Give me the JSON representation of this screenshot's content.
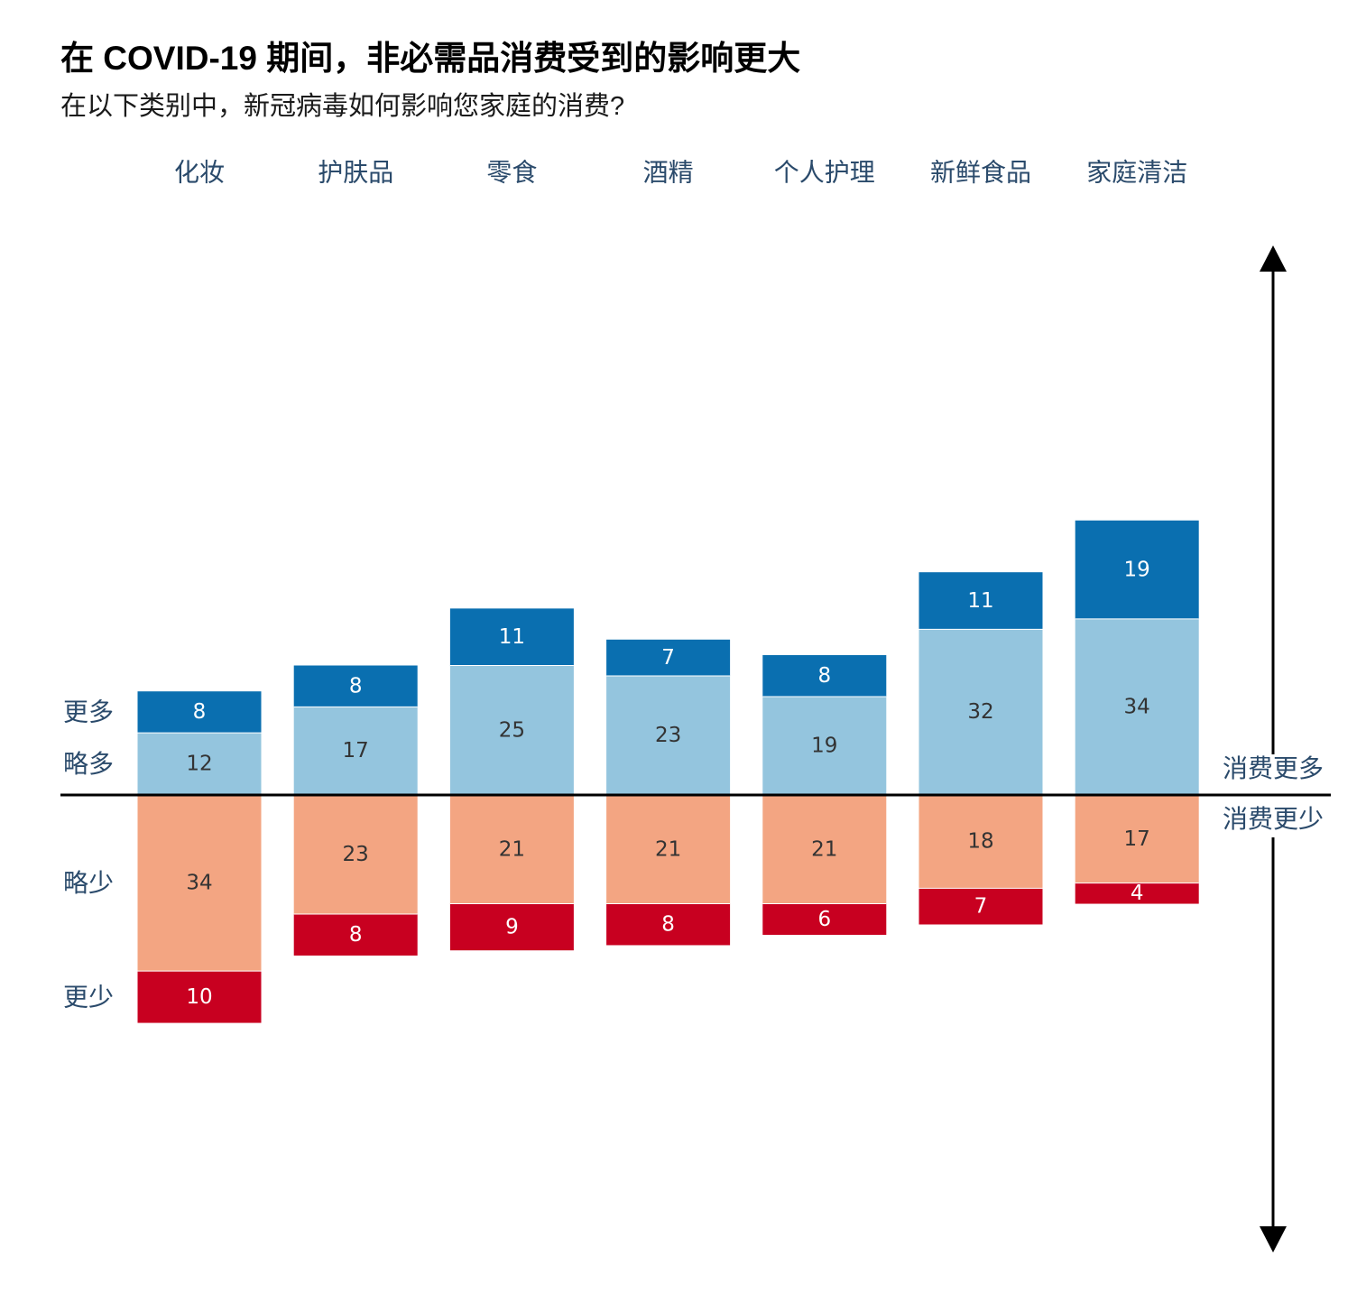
{
  "title": "在 COVID-19 期间，非必需品消费受到的影响更大",
  "subtitle": "在以下类别中，新冠病毒如何影响您家庭的消费?",
  "colors": {
    "more": "#0a6fb0",
    "slightly_more": "#94c5de",
    "slightly_less": "#f3a582",
    "less": "#c80020",
    "label_dark_text": "#333333",
    "label_light_text": "#ffffff",
    "category_text": "#2a4a6b",
    "row_label_text": "#2a4a6b"
  },
  "chart_data": {
    "type": "bar",
    "categories": [
      "化妆",
      "护肤品",
      "零食",
      "酒精",
      "个人护理",
      "新鲜食品",
      "家庭清洁"
    ],
    "series": [
      {
        "name": "更多",
        "values": [
          8,
          8,
          11,
          7,
          8,
          11,
          19
        ]
      },
      {
        "name": "略多",
        "values": [
          12,
          17,
          25,
          23,
          19,
          32,
          34
        ]
      },
      {
        "name": "略少",
        "values": [
          34,
          23,
          21,
          21,
          21,
          18,
          17
        ]
      },
      {
        "name": "更少",
        "values": [
          10,
          8,
          9,
          8,
          6,
          7,
          4
        ]
      }
    ],
    "axis_labels": {
      "up": "消费更多",
      "down": "消费更少"
    },
    "grid": false
  }
}
